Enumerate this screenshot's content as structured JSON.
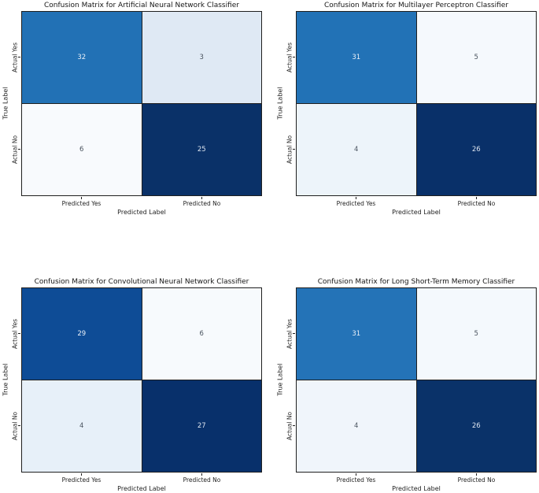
{
  "figure": {
    "type": "confusion-matrix-grid",
    "colormap": "Blues",
    "background": "#ffffff",
    "spine_color": "#1f1f1f",
    "grid_line_color": "#1f1f1f",
    "text_color": "#1f1f1f"
  },
  "chart_data": [
    {
      "type": "heatmap",
      "title": "Confusion Matrix for Artificial Neural Network Classifier",
      "xlabel": "Predicted Label",
      "ylabel": "True Label",
      "x_categories": [
        "Predicted Yes",
        "Predicted No"
      ],
      "y_categories": [
        "Actual Yes",
        "Actual No"
      ],
      "values": [
        [
          32,
          3
        ],
        [
          6,
          25
        ]
      ],
      "cell_styles": [
        [
          {
            "bg": "#2271b5",
            "fg": "#e9f0f8"
          },
          {
            "bg": "#dfe9f4",
            "fg": "#49525e"
          }
        ],
        [
          {
            "bg": "#f8fafd",
            "fg": "#49525e"
          },
          {
            "bg": "#0a3168",
            "fg": "#dde5ef"
          }
        ]
      ]
    },
    {
      "type": "heatmap",
      "title": "Confusion Matrix for Multilayer Perceptron Classifier",
      "xlabel": "Predicted Label",
      "ylabel": "True Label",
      "x_categories": [
        "Predicted Yes",
        "Predicted No"
      ],
      "y_categories": [
        "Actual Yes",
        "Actual No"
      ],
      "values": [
        [
          31,
          5
        ],
        [
          4,
          26
        ]
      ],
      "cell_styles": [
        [
          {
            "bg": "#2272b6",
            "fg": "#e9f0f8"
          },
          {
            "bg": "#f5f9fd",
            "fg": "#49525e"
          }
        ],
        [
          {
            "bg": "#edf4fa",
            "fg": "#49525e"
          },
          {
            "bg": "#093069",
            "fg": "#dde5ef"
          }
        ]
      ]
    },
    {
      "type": "heatmap",
      "title": "Confusion Matrix for Convolutional Neural Network Classifier",
      "xlabel": "Predicted Label",
      "ylabel": "True Label",
      "x_categories": [
        "Predicted Yes",
        "Predicted No"
      ],
      "y_categories": [
        "Actual Yes",
        "Actual No"
      ],
      "values": [
        [
          29,
          6
        ],
        [
          4,
          27
        ]
      ],
      "cell_styles": [
        [
          {
            "bg": "#0e4c96",
            "fg": "#e9f0f8"
          },
          {
            "bg": "#f7fafd",
            "fg": "#49525e"
          }
        ],
        [
          {
            "bg": "#e7f0f9",
            "fg": "#49525e"
          },
          {
            "bg": "#08306b",
            "fg": "#dde5ef"
          }
        ]
      ]
    },
    {
      "type": "heatmap",
      "title": "Confusion Matrix for Long Short-Term Memory Classifier",
      "xlabel": "Predicted Label",
      "ylabel": "True Label",
      "x_categories": [
        "Predicted Yes",
        "Predicted No"
      ],
      "y_categories": [
        "Actual Yes",
        "Actual No"
      ],
      "values": [
        [
          31,
          5
        ],
        [
          4,
          26
        ]
      ],
      "cell_styles": [
        [
          {
            "bg": "#2473b7",
            "fg": "#e9f0f8"
          },
          {
            "bg": "#f4f9fd",
            "fg": "#49525e"
          }
        ],
        [
          {
            "bg": "#f0f5fb",
            "fg": "#49525e"
          },
          {
            "bg": "#0a3269",
            "fg": "#dde5ef"
          }
        ]
      ]
    }
  ]
}
